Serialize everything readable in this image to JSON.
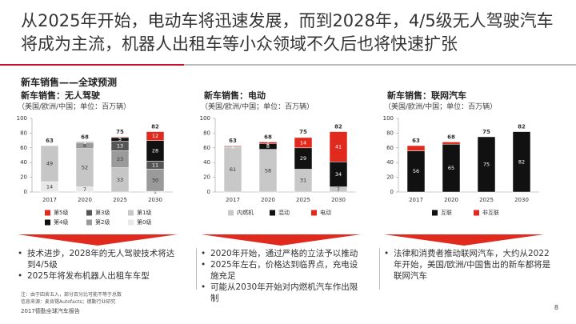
{
  "header": {
    "title": "从2025年开始，电动车将迅速发展，而到2028年，4/5级无人驾驶汽车将成为主流，机器人出租车等小众领域不久后也将快速扩张"
  },
  "section_title": "新车销售——全球预测",
  "chart_data": [
    {
      "type": "bar",
      "stacked": true,
      "title": "新车销售：无人驾驶",
      "subtitle": "（美国/欧洲/中国；单位：百万辆）",
      "categories": [
        "2017",
        "2020",
        "2025",
        "2030"
      ],
      "totals": [
        63,
        68,
        75,
        82
      ],
      "ylim": [
        0,
        100
      ],
      "yticks": [
        0,
        20,
        40,
        60,
        80,
        100
      ],
      "series": [
        {
          "name": "第0级",
          "color": "#e8e8e8",
          "values": [
            14,
            7,
            null,
            null
          ]
        },
        {
          "name": "第1级",
          "color": "#c6c6c6",
          "values": [
            49,
            52,
            33,
            1
          ]
        },
        {
          "name": "第2级",
          "color": "#9a9a9a",
          "values": [
            null,
            8,
            23,
            30
          ]
        },
        {
          "name": "第3级",
          "color": "#555555",
          "values": [
            null,
            1,
            13,
            11
          ]
        },
        {
          "name": "第4级",
          "color": "#111111",
          "values": [
            null,
            null,
            5,
            28
          ]
        },
        {
          "name": "第5级",
          "color": "#e02a1e",
          "values": [
            null,
            null,
            1,
            12
          ]
        }
      ]
    },
    {
      "type": "bar",
      "stacked": true,
      "title": "新车销售：电动",
      "subtitle": "（美国/欧洲/中国；单位：百万辆）",
      "categories": [
        "2017",
        "2020",
        "2025",
        "2030"
      ],
      "totals": [
        63,
        68,
        75,
        82
      ],
      "ylim": [
        0,
        100
      ],
      "yticks": [
        0,
        20,
        40,
        60,
        80,
        100
      ],
      "series": [
        {
          "name": "内燃机",
          "color": "#c8c8c8",
          "values": [
            61,
            58,
            31,
            7
          ]
        },
        {
          "name": "混动",
          "color": "#111111",
          "values": [
            1,
            8,
            29,
            34
          ]
        },
        {
          "name": "电动",
          "color": "#e02a1e",
          "values": [
            1,
            2,
            14,
            41
          ]
        }
      ]
    },
    {
      "type": "bar",
      "stacked": true,
      "title": "新车销售：联网汽车",
      "subtitle": "（美国/欧洲/中国；单位：百万辆）",
      "categories": [
        "2017",
        "2020",
        "2025",
        "2030"
      ],
      "totals": [
        63,
        68,
        75,
        82
      ],
      "ylim": [
        0,
        100
      ],
      "yticks": [
        0,
        20,
        40,
        60,
        80,
        100
      ],
      "series": [
        {
          "name": "互联",
          "color": "#111111",
          "values": [
            56,
            65,
            75,
            82
          ]
        },
        {
          "name": "非互联",
          "color": "#e02a1e",
          "values": [
            7,
            3,
            null,
            null
          ],
          "value_labels": [
            null,
            null,
            null,
            null
          ]
        }
      ]
    }
  ],
  "bullets": [
    [
      "技术进步，2028年的无人驾驶技术将达到4/5级",
      "2025年将发布机器人出租车车型"
    ],
    [
      "2020年开始，通过严格的立法予以推动",
      "2025年左右，价格达到临界点，充电设施充足",
      "可能从2030年开始对内燃机汽车作出限制"
    ],
    [
      "法律和消费者推动联网汽车，大约从2022年开始，美国/欧洲/中国售出的新车都将是联网汽车"
    ]
  ],
  "notes": [
    "注：由于四舍五入，部分百分比可能不等于总数",
    "信息来源：麦肯锡Autofacts；德勤行业研究"
  ],
  "footer": "2017德勤全球汽车报告",
  "page_number": "8"
}
